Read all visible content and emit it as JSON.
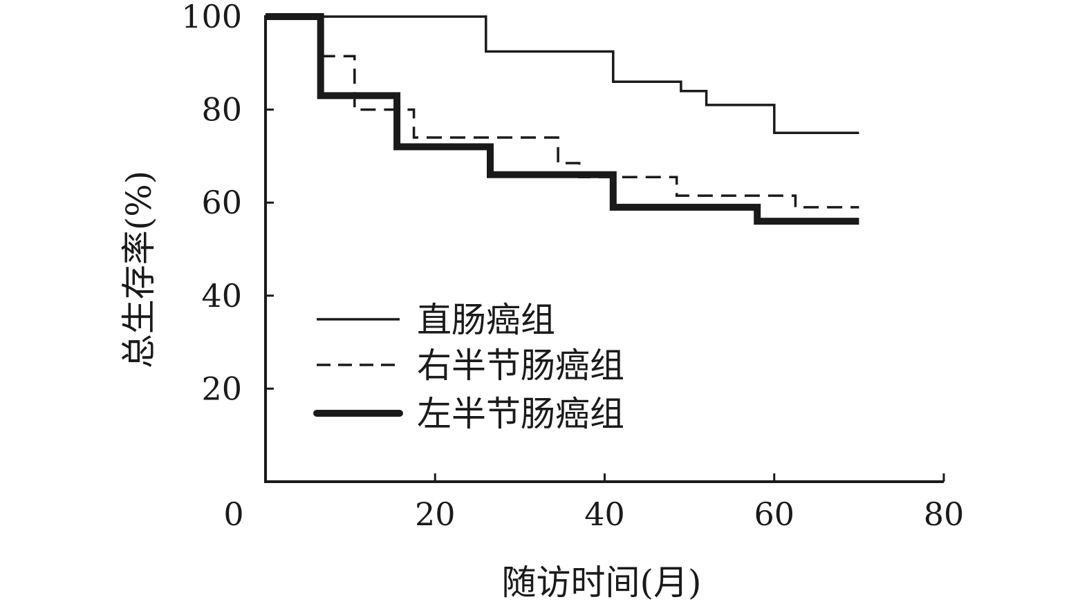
{
  "chart_data": {
    "type": "line",
    "step": true,
    "xlabel": "随访时间(月)",
    "ylabel": "总生存率(%)",
    "xlim": [
      0,
      80
    ],
    "ylim": [
      0,
      100
    ],
    "x_ticks": [
      0,
      20,
      40,
      60,
      80
    ],
    "y_ticks": [
      20,
      40,
      60,
      80,
      100
    ],
    "grid": false,
    "legend_position": "bottom-left",
    "series": [
      {
        "name": "直肠癌组",
        "style": "solid-thin",
        "color": "#1a1a1a",
        "points": [
          [
            0,
            100
          ],
          [
            26,
            100
          ],
          [
            26,
            92.5
          ],
          [
            41,
            92.5
          ],
          [
            41,
            86
          ],
          [
            49,
            86
          ],
          [
            49,
            84
          ],
          [
            52,
            84
          ],
          [
            52,
            81
          ],
          [
            60,
            81
          ],
          [
            60,
            75
          ],
          [
            70,
            75
          ]
        ]
      },
      {
        "name": "右半节肠癌组",
        "style": "dashed",
        "color": "#1a1a1a",
        "points": [
          [
            0,
            100
          ],
          [
            6.5,
            100
          ],
          [
            6.5,
            91.5
          ],
          [
            10.5,
            91.5
          ],
          [
            10.5,
            80
          ],
          [
            17.5,
            80
          ],
          [
            17.5,
            74
          ],
          [
            34.5,
            74
          ],
          [
            34.5,
            68.5
          ],
          [
            37,
            68.5
          ],
          [
            37,
            65.5
          ],
          [
            48.5,
            65.5
          ],
          [
            48.5,
            61.5
          ],
          [
            62.5,
            61.5
          ],
          [
            62.5,
            59
          ],
          [
            70,
            59
          ]
        ]
      },
      {
        "name": "左半节肠癌组",
        "style": "solid-thick",
        "color": "#1a1a1a",
        "points": [
          [
            0,
            100
          ],
          [
            6.5,
            100
          ],
          [
            6.5,
            83
          ],
          [
            15.5,
            83
          ],
          [
            15.5,
            72
          ],
          [
            26.5,
            72
          ],
          [
            26.5,
            66
          ],
          [
            41,
            66
          ],
          [
            41,
            59
          ],
          [
            58,
            59
          ],
          [
            58,
            56
          ],
          [
            70,
            56
          ]
        ]
      }
    ]
  }
}
